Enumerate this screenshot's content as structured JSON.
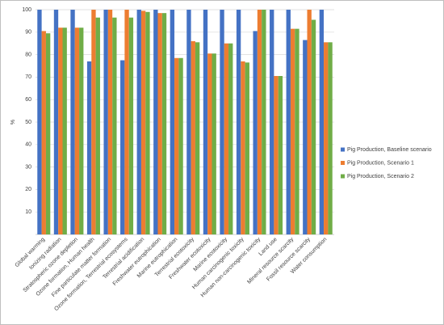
{
  "chart_data": {
    "type": "bar",
    "y_label": "%",
    "categories": [
      "Global warming",
      "Ionizing radiation",
      "Stratospheric ozone depletion",
      "Ozone formation, Human health",
      "Fine particulate matter formation",
      "Ozone formation, Terrestrial ecosystems",
      "Terrestrial acidification",
      "Freshwater eutrophication",
      "Marine eutrophication",
      "Terrestrial ecotoxicity",
      "Freshwater ecotoxicity",
      "Marine ecotoxicity",
      "Human carcinogenic toxicity",
      "Human non-carcinogenic toxicity",
      "Land use",
      "Mineral resource scarcity",
      "Fossil resource scarcity",
      "Water consumption"
    ],
    "series": [
      {
        "name": "Pig Production, Baseline scenario",
        "color": "#4472c4",
        "values": [
          100,
          100,
          100,
          77,
          100,
          77.5,
          100,
          100,
          100,
          100,
          100,
          100,
          100,
          90.5,
          100,
          100,
          86.5,
          100
        ]
      },
      {
        "name": "Pig Production, Scenario 1",
        "color": "#ed7d31",
        "values": [
          90.5,
          92,
          92,
          100,
          100,
          100,
          99.5,
          98.5,
          78.5,
          86,
          80.5,
          85,
          77,
          100,
          70.5,
          91.5,
          100,
          85.5
        ]
      },
      {
        "name": "Pig Production, Scenario 2",
        "color": "#70ad47",
        "values": [
          89.5,
          92,
          92,
          96.5,
          96.5,
          96.5,
          99,
          98.5,
          78.5,
          85.5,
          80.5,
          85,
          76.5,
          100,
          70.5,
          91.5,
          95.5,
          85.5
        ]
      }
    ],
    "ylim": [
      0,
      100
    ],
    "yticks": [
      10,
      20,
      30,
      40,
      50,
      60,
      70,
      80,
      90,
      100
    ],
    "grid": true,
    "legend": "right"
  }
}
